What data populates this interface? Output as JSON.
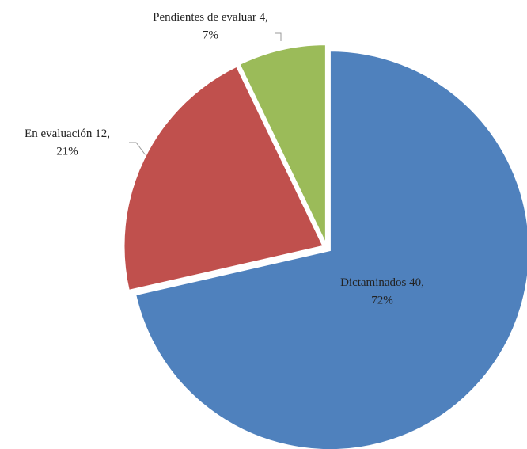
{
  "chart_data": {
    "type": "pie",
    "categories": [
      "Dictaminados",
      "En evaluación",
      "Pendientes de evaluar"
    ],
    "values": [
      40,
      12,
      4
    ],
    "value_labels": [
      "40,",
      "12,",
      "4,"
    ],
    "percent_labels": [
      "72%",
      "21%",
      "7%"
    ],
    "colors": [
      "#4f81bd",
      "#c0504d",
      "#9bbb59"
    ]
  }
}
